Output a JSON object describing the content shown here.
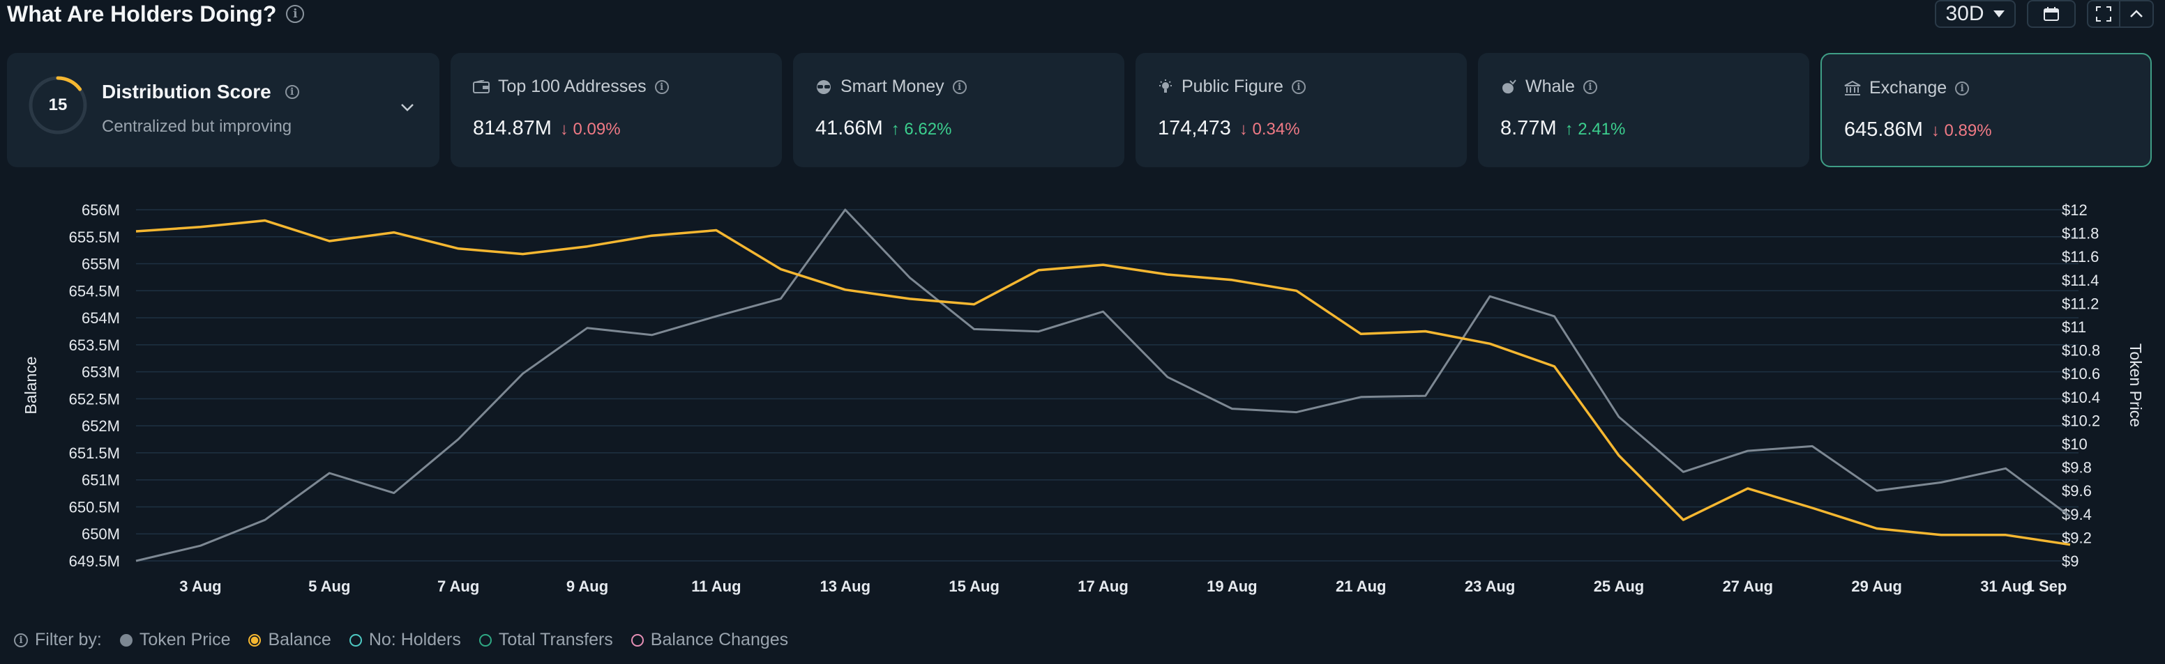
{
  "header": {
    "title": "What Are Holders Doing?",
    "range_label": "30D"
  },
  "distribution": {
    "score": "15",
    "score_value": 15,
    "score_max": 100,
    "title": "Distribution Score",
    "subtitle": "Centralized but improving"
  },
  "metrics": [
    {
      "label": "Top 100 Addresses",
      "value": "814.87M",
      "change": "0.09%",
      "direction": "down",
      "icon": "wallet-icon"
    },
    {
      "label": "Smart Money",
      "value": "41.66M",
      "change": "6.62%",
      "direction": "up",
      "icon": "glasses-icon"
    },
    {
      "label": "Public Figure",
      "value": "174,473",
      "change": "0.34%",
      "direction": "down",
      "icon": "lightbulb-icon"
    },
    {
      "label": "Whale",
      "value": "8.77M",
      "change": "2.41%",
      "direction": "up",
      "icon": "whale-icon"
    },
    {
      "label": "Exchange",
      "value": "645.86M",
      "change": "0.89%",
      "direction": "down",
      "icon": "bank-icon"
    }
  ],
  "filter": {
    "label": "Filter by:",
    "items": [
      {
        "label": "Token Price",
        "color": "#7d8893",
        "style": "filled"
      },
      {
        "label": "Balance",
        "color": "#f5b731",
        "style": "ring-filled"
      },
      {
        "label": "No: Holders",
        "color": "#4ec9c3",
        "style": "ring"
      },
      {
        "label": "Total Transfers",
        "color": "#2fa884",
        "style": "ring"
      },
      {
        "label": "Balance Changes",
        "color": "#e58fb5",
        "style": "ring"
      }
    ]
  },
  "chart_data": {
    "type": "line",
    "ylabel_left": "Balance",
    "ylabel_right": "Token Price",
    "ylim_left": [
      649.5,
      656
    ],
    "ylim_right": [
      9,
      12
    ],
    "yticks_left": [
      "656M",
      "655.5M",
      "655M",
      "654.5M",
      "654M",
      "653.5M",
      "653M",
      "652.5M",
      "652M",
      "651.5M",
      "651M",
      "650.5M",
      "650M",
      "649.5M"
    ],
    "yticks_right": [
      "$12",
      "$11.8",
      "$11.6",
      "$11.4",
      "$11.2",
      "$11",
      "$10.8",
      "$10.6",
      "$10.4",
      "$10.2",
      "$10",
      "$9.8",
      "$9.6",
      "$9.4",
      "$9.2",
      "$9"
    ],
    "xticks": [
      "3 Aug",
      "5 Aug",
      "7 Aug",
      "9 Aug",
      "11 Aug",
      "13 Aug",
      "15 Aug",
      "17 Aug",
      "19 Aug",
      "21 Aug",
      "23 Aug",
      "25 Aug",
      "27 Aug",
      "29 Aug",
      "31 Aug",
      "1 Sep"
    ],
    "x": [
      "2 Aug",
      "3 Aug",
      "4 Aug",
      "5 Aug",
      "6 Aug",
      "7 Aug",
      "8 Aug",
      "9 Aug",
      "10 Aug",
      "11 Aug",
      "12 Aug",
      "13 Aug",
      "14 Aug",
      "15 Aug",
      "16 Aug",
      "17 Aug",
      "18 Aug",
      "19 Aug",
      "20 Aug",
      "21 Aug",
      "22 Aug",
      "23 Aug",
      "24 Aug",
      "25 Aug",
      "26 Aug",
      "27 Aug",
      "28 Aug",
      "29 Aug",
      "30 Aug",
      "31 Aug",
      "1 Sep"
    ],
    "series": [
      {
        "name": "Balance",
        "axis": "left",
        "color": "#f5b731",
        "values": [
          655.6,
          655.68,
          655.8,
          655.42,
          655.58,
          655.28,
          655.18,
          655.32,
          655.52,
          655.62,
          654.9,
          654.52,
          654.35,
          654.25,
          654.88,
          654.98,
          654.8,
          654.7,
          654.5,
          653.7,
          653.75,
          653.52,
          653.1,
          651.45,
          650.26,
          650.84,
          650.48,
          650.1,
          649.98,
          649.98,
          649.8
        ]
      },
      {
        "name": "Token Price",
        "axis": "right",
        "color": "#7d8893",
        "values": [
          9,
          9.13,
          9.35,
          9.75,
          9.58,
          10.04,
          10.6,
          10.99,
          10.93,
          11.09,
          11.24,
          12,
          11.42,
          10.98,
          10.96,
          11.13,
          10.57,
          10.3,
          10.27,
          10.4,
          10.41,
          11.26,
          11.09,
          10.23,
          9.76,
          9.94,
          9.98,
          9.6,
          9.67,
          9.79,
          9.38
        ]
      }
    ]
  }
}
